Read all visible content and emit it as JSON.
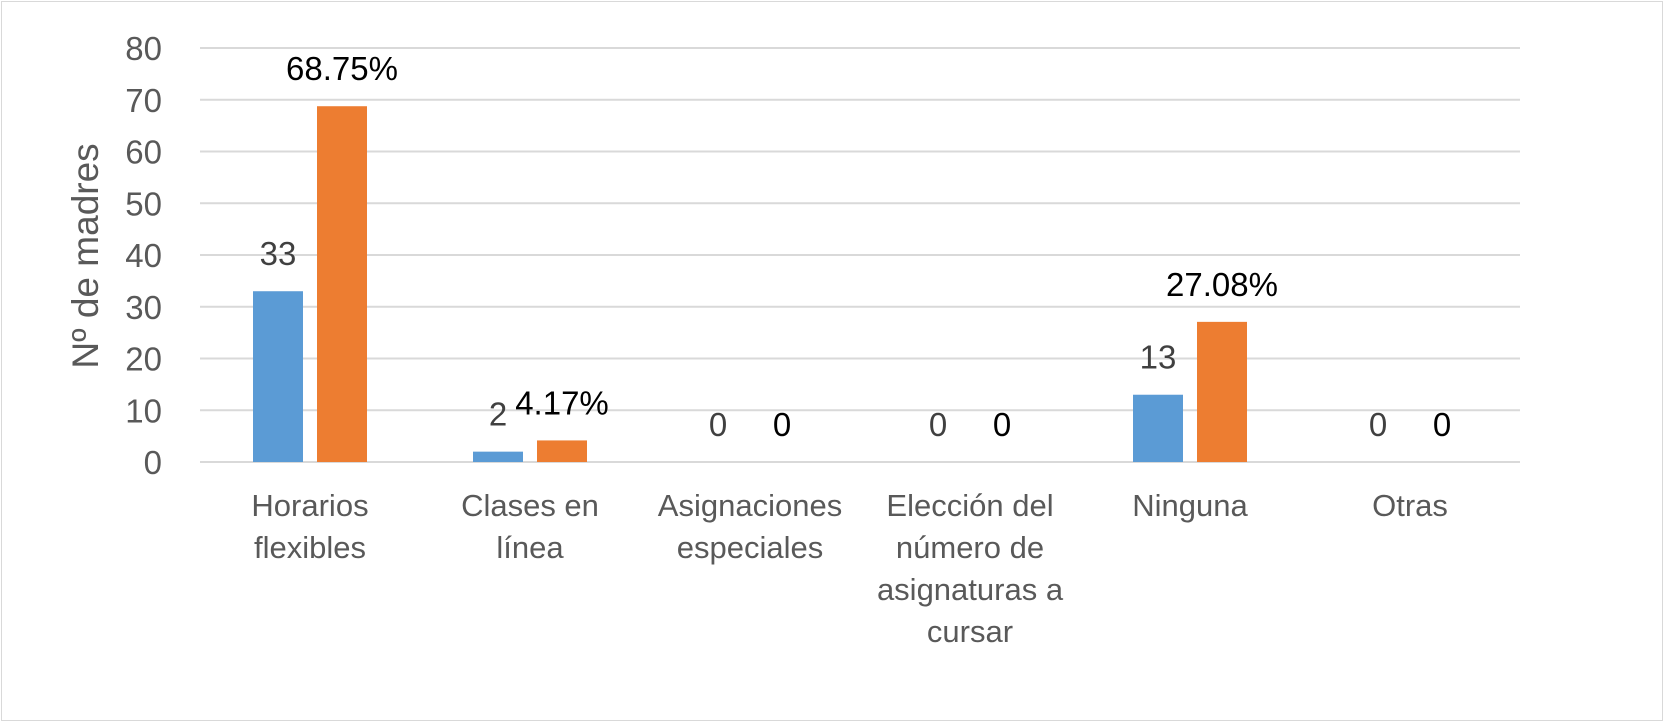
{
  "chart_data": {
    "type": "bar",
    "title": "",
    "xlabel": "",
    "ylabel": "Nº de madres",
    "ylim": [
      0,
      80
    ],
    "yticks": [
      0,
      10,
      20,
      30,
      40,
      50,
      60,
      70,
      80
    ],
    "grid": true,
    "legend": "none",
    "categories": [
      [
        "Horarios",
        "flexibles"
      ],
      [
        "Clases en",
        "línea"
      ],
      [
        "Asignaciones",
        "especiales"
      ],
      [
        "Elección del",
        "número de",
        "asignaturas a",
        "cursar"
      ],
      [
        "Ninguna"
      ],
      [
        "Otras"
      ]
    ],
    "series": [
      {
        "values": [
          33,
          2,
          0,
          0,
          13,
          0
        ],
        "labels": [
          "33",
          "2",
          "0",
          "0",
          "13",
          "0"
        ],
        "color": "#5b9bd5",
        "label_color": "#404040"
      },
      {
        "values": [
          68.75,
          4.17,
          0,
          0,
          27.08,
          0
        ],
        "labels": [
          "68.75%",
          "4.17%",
          "0",
          "0",
          "27.08%",
          "0"
        ],
        "color": "#ed7d31",
        "label_color": "#000000"
      }
    ],
    "gridline_color": "#d9d9d9"
  }
}
